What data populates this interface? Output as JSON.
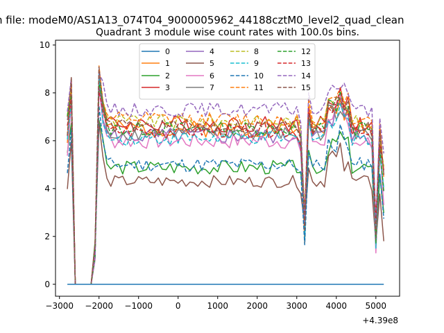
{
  "chart_data": {
    "type": "line",
    "suptitle": "n file: modeM0/AS1A13_074T04_9000005962_44188cztM0_level2_quad_clean",
    "title": "Quadrant 3 module wise count rates with 100.0s bins.",
    "xlabel": "",
    "ylabel": "",
    "offset_label": "+4.39e8",
    "xlim": [
      -3100,
      5600
    ],
    "ylim": [
      -0.5,
      10.2
    ],
    "xticks": [
      -3000,
      -2000,
      -1000,
      0,
      1000,
      2000,
      3000,
      4000,
      5000
    ],
    "xtick_labels": [
      "−3000",
      "−2000",
      "−1000",
      "0",
      "1000",
      "2000",
      "3000",
      "4000",
      "5000"
    ],
    "yticks": [
      0,
      2,
      4,
      6,
      8,
      10
    ],
    "ytick_labels": [
      "0",
      "2",
      "4",
      "6",
      "8",
      "10"
    ],
    "legend_position": "upper-center",
    "grid": false,
    "series": [
      {
        "name": "0",
        "color": "#1f77b4",
        "dashed": false,
        "base": 0.0,
        "spread": 0.0,
        "seed": 1
      },
      {
        "name": "1",
        "color": "#ff7f0e",
        "dashed": false,
        "base": 6.5,
        "spread": 0.35,
        "seed": 2
      },
      {
        "name": "2",
        "color": "#2ca02c",
        "dashed": false,
        "base": 4.9,
        "spread": 0.3,
        "seed": 3
      },
      {
        "name": "3",
        "color": "#d62728",
        "dashed": false,
        "base": 6.7,
        "spread": 0.35,
        "seed": 4
      },
      {
        "name": "4",
        "color": "#9467bd",
        "dashed": false,
        "base": 6.2,
        "spread": 0.35,
        "seed": 5
      },
      {
        "name": "5",
        "color": "#8c564b",
        "dashed": false,
        "base": 4.3,
        "spread": 0.25,
        "seed": 6
      },
      {
        "name": "6",
        "color": "#e377c2",
        "dashed": false,
        "base": 6.0,
        "spread": 0.35,
        "seed": 7
      },
      {
        "name": "7",
        "color": "#7f7f7f",
        "dashed": false,
        "base": 6.3,
        "spread": 0.3,
        "seed": 8
      },
      {
        "name": "8",
        "color": "#bcbd22",
        "dashed": true,
        "base": 6.8,
        "spread": 0.3,
        "seed": 9
      },
      {
        "name": "9",
        "color": "#17becf",
        "dashed": true,
        "base": 6.1,
        "spread": 0.3,
        "seed": 10
      },
      {
        "name": "10",
        "color": "#1f77b4",
        "dashed": true,
        "base": 5.0,
        "spread": 0.3,
        "seed": 11
      },
      {
        "name": "11",
        "color": "#ff7f0e",
        "dashed": true,
        "base": 6.9,
        "spread": 0.3,
        "seed": 12
      },
      {
        "name": "12",
        "color": "#2ca02c",
        "dashed": true,
        "base": 6.5,
        "spread": 0.3,
        "seed": 13
      },
      {
        "name": "13",
        "color": "#d62728",
        "dashed": true,
        "base": 6.4,
        "spread": 0.3,
        "seed": 14
      },
      {
        "name": "14",
        "color": "#9467bd",
        "dashed": true,
        "base": 7.3,
        "spread": 0.3,
        "seed": 15
      },
      {
        "name": "15",
        "color": "#8c564b",
        "dashed": true,
        "base": 6.6,
        "spread": 0.3,
        "seed": 16
      }
    ]
  }
}
